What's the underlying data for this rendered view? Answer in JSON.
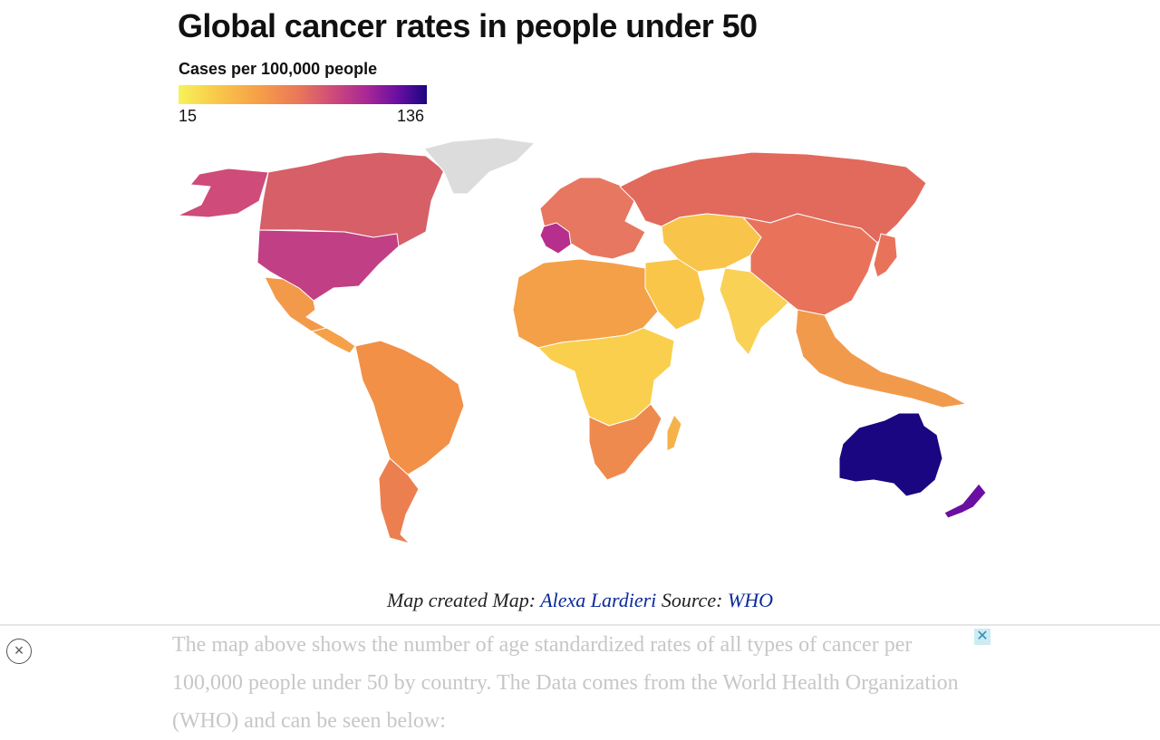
{
  "title": "Global cancer rates in people under 50",
  "legend": {
    "title": "Cases per 100,000 people",
    "min": "15",
    "max": "136",
    "colors": [
      "#f7f35a",
      "#f9c64a",
      "#f6a048",
      "#ea7857",
      "#cf4b7a",
      "#a72794",
      "#6b0fa3",
      "#1a0680"
    ]
  },
  "map": {
    "no_data_color": "#dcdcdc",
    "regions": [
      {
        "name": "Alaska",
        "color": "#cf4b7a"
      },
      {
        "name": "Canada",
        "color": "#d65f68"
      },
      {
        "name": "United States",
        "color": "#c13f84"
      },
      {
        "name": "Greenland",
        "color": "#dcdcdc"
      },
      {
        "name": "Mexico",
        "color": "#f39a4a"
      },
      {
        "name": "Central America",
        "color": "#f6a048"
      },
      {
        "name": "South America",
        "color": "#f29048"
      },
      {
        "name": "Argentina",
        "color": "#ec7f50"
      },
      {
        "name": "Europe",
        "color": "#e77760"
      },
      {
        "name": "France",
        "color": "#b62f8c"
      },
      {
        "name": "Russia",
        "color": "#e26a5c"
      },
      {
        "name": "Central Asia",
        "color": "#f8c54a"
      },
      {
        "name": "China",
        "color": "#e8735a"
      },
      {
        "name": "India",
        "color": "#f9d155"
      },
      {
        "name": "Arabia",
        "color": "#f9c64a"
      },
      {
        "name": "North Africa",
        "color": "#f4a048"
      },
      {
        "name": "Central Africa",
        "color": "#f9cf4d"
      },
      {
        "name": "Southern Africa",
        "color": "#ef8a4e"
      },
      {
        "name": "Southeast Asia",
        "color": "#f29a4c"
      },
      {
        "name": "Japan",
        "color": "#e8735a"
      },
      {
        "name": "Madagascar",
        "color": "#f5b249"
      },
      {
        "name": "Australia",
        "color": "#1a0680"
      },
      {
        "name": "New Zealand",
        "color": "#6b0fa3"
      }
    ]
  },
  "caption": {
    "prefix": "Map created Map: ",
    "author": "Alexa Lardieri",
    "source_label": " Source: ",
    "source": "WHO"
  },
  "overlay": {
    "close_icon": "close-circle-icon",
    "ad_close_icon": "ad-close-icon",
    "text": "The map above shows the number of age standardized rates of all types of cancer per 100,000 people under 50 by country. The Data comes from the World Health Organization (WHO) and can be seen below:"
  }
}
